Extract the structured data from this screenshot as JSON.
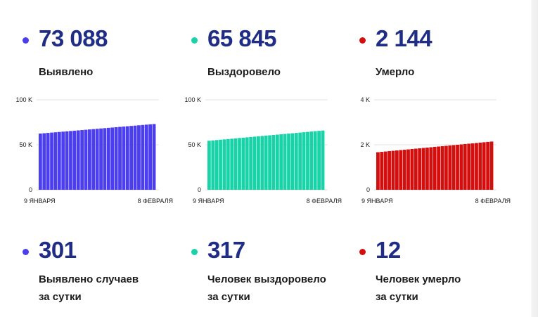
{
  "totals": [
    {
      "value": "73 088",
      "label": "Выявлено",
      "color": "#4b3df0"
    },
    {
      "value": "65 845",
      "label": "Выздоровело",
      "color": "#17d3a7"
    },
    {
      "value": "2 144",
      "label": "Умерло",
      "color": "#d40d0d"
    }
  ],
  "daily": [
    {
      "value": "301",
      "label_line1": "Выявлено случаев",
      "label_line2": "за сутки",
      "color": "#4b3df0"
    },
    {
      "value": "317",
      "label_line1": "Человек выздоровело",
      "label_line2": "за сутки",
      "color": "#17d3a7"
    },
    {
      "value": "12",
      "label_line1": "Человек умерло",
      "label_line2": "за сутки",
      "color": "#d40d0d"
    }
  ],
  "chart_data": [
    {
      "type": "bar",
      "series_name": "Выявлено",
      "color": "#4b3df0",
      "ylim": [
        0,
        100000
      ],
      "yticks": [
        0,
        50000,
        100000
      ],
      "ytick_labels": [
        "0",
        "50 K",
        "100 K"
      ],
      "x_start_label": "9 ЯНВАРЯ",
      "x_end_label": "8 ФЕВРАЛЯ",
      "start_value": 62500,
      "end_value": 73088,
      "bar_count": 31,
      "grid": true
    },
    {
      "type": "bar",
      "series_name": "Выздоровело",
      "color": "#17d3a7",
      "ylim": [
        0,
        100000
      ],
      "yticks": [
        0,
        50000,
        100000
      ],
      "ytick_labels": [
        "0",
        "50 K",
        "100 K"
      ],
      "x_start_label": "9 ЯНВАРЯ",
      "x_end_label": "8 ФЕВРАЛЯ",
      "start_value": 54500,
      "end_value": 65845,
      "bar_count": 31,
      "grid": true
    },
    {
      "type": "bar",
      "series_name": "Умерло",
      "color": "#d40d0d",
      "ylim": [
        0,
        4000
      ],
      "yticks": [
        0,
        2000,
        4000
      ],
      "ytick_labels": [
        "0",
        "2 K",
        "4 K"
      ],
      "x_start_label": "9 ЯНВАРЯ",
      "x_end_label": "8 ФЕВРАЛЯ",
      "start_value": 1670,
      "end_value": 2144,
      "bar_count": 31,
      "grid": true
    }
  ]
}
